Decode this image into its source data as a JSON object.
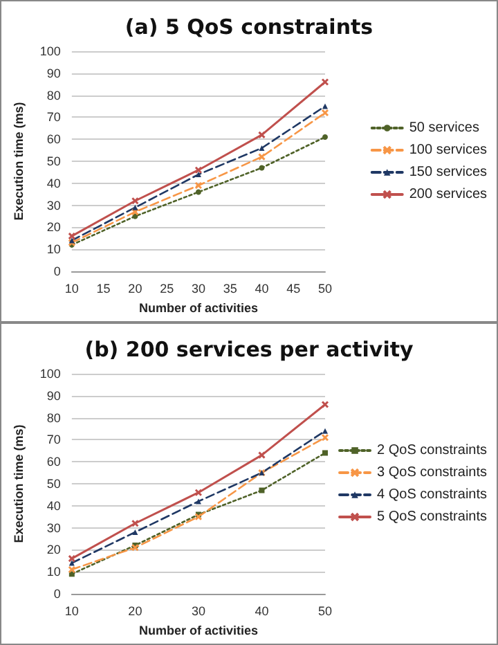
{
  "chart_data": [
    {
      "type": "line",
      "title": "(a) 5 QoS constraints",
      "xlabel": "Number of activities",
      "ylabel": "Execution time (ms)",
      "x": [
        10,
        20,
        30,
        40,
        50
      ],
      "xlim": [
        10,
        50
      ],
      "xticks": [
        10,
        15,
        20,
        25,
        30,
        35,
        40,
        45,
        50
      ],
      "ylim": [
        0,
        100
      ],
      "yticks": [
        0,
        10,
        20,
        30,
        40,
        50,
        60,
        70,
        80,
        90,
        100
      ],
      "grid": "y",
      "legend": "right",
      "series": [
        {
          "name": "50 services",
          "color": "#4f6228",
          "marker": "circle",
          "line_style": "dotted",
          "values": [
            12,
            25,
            36,
            47,
            61
          ]
        },
        {
          "name": "100 services",
          "color": "#f79646",
          "marker": "cross",
          "line_style": "dashed",
          "values": [
            13,
            27,
            39,
            52,
            72
          ]
        },
        {
          "name": "150 services",
          "color": "#1f3864",
          "marker": "triangle",
          "line_style": "dashed",
          "values": [
            14,
            29,
            44,
            56,
            75
          ]
        },
        {
          "name": "200 services",
          "color": "#c0504d",
          "marker": "cross",
          "line_style": "solid",
          "values": [
            16,
            32,
            46,
            62,
            86
          ]
        }
      ]
    },
    {
      "type": "line",
      "title": "(b) 200 services per activity",
      "xlabel": "Number of activities",
      "ylabel": "Execution time (ms)",
      "x": [
        10,
        20,
        30,
        40,
        50
      ],
      "xlim": [
        10,
        50
      ],
      "xticks": [
        10,
        20,
        30,
        40,
        50
      ],
      "ylim": [
        0,
        100
      ],
      "yticks": [
        0,
        10,
        20,
        30,
        40,
        50,
        60,
        70,
        80,
        90,
        100
      ],
      "grid": "y",
      "legend": "right",
      "series": [
        {
          "name": "2 QoS constraints",
          "color": "#4f6228",
          "marker": "square",
          "line_style": "dotted",
          "values": [
            9,
            22,
            36,
            47,
            64
          ]
        },
        {
          "name": "3 QoS constraints",
          "color": "#f79646",
          "marker": "cross",
          "line_style": "dashed",
          "values": [
            11,
            21,
            35,
            55,
            71
          ]
        },
        {
          "name": "4 QoS constraints",
          "color": "#1f3864",
          "marker": "triangle",
          "line_style": "dashed",
          "values": [
            14,
            28,
            42,
            55,
            74
          ]
        },
        {
          "name": "5 QoS constraints",
          "color": "#c0504d",
          "marker": "cross",
          "line_style": "solid",
          "values": [
            16,
            32,
            46,
            63,
            86
          ]
        }
      ]
    }
  ]
}
